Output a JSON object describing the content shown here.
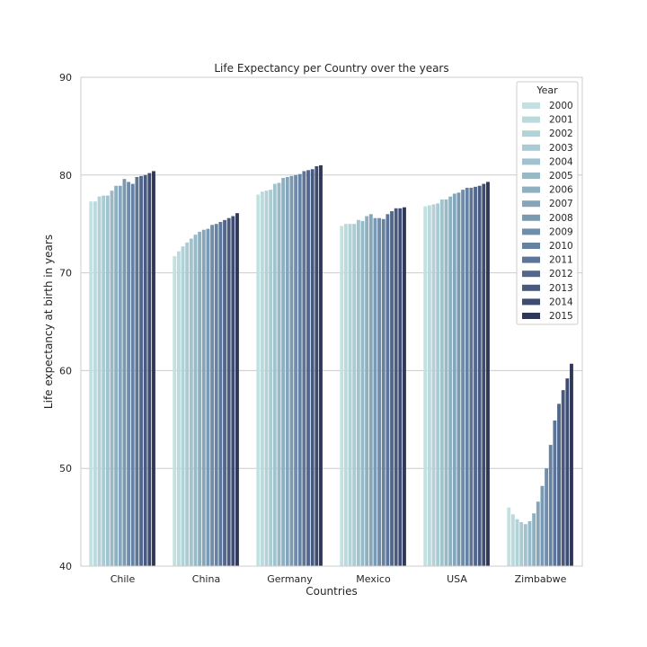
{
  "chart_data": {
    "type": "bar",
    "title": "Life Expectancy per Country over the years",
    "xlabel": "Countries",
    "ylabel": "Life expectancy at birth in years",
    "ylim": [
      40,
      90
    ],
    "yticks": [
      40,
      50,
      60,
      70,
      80,
      90
    ],
    "grid": "horizontal",
    "legend": {
      "title": "Year",
      "placement": "top-right"
    },
    "categories": [
      "Chile",
      "China",
      "Germany",
      "Mexico",
      "USA",
      "Zimbabwe"
    ],
    "series": [
      {
        "name": "2000",
        "color": "#c3e1e1",
        "values": [
          77.3,
          71.7,
          78.0,
          74.8,
          76.8,
          46.0
        ]
      },
      {
        "name": "2001",
        "color": "#bbdadc",
        "values": [
          77.3,
          72.2,
          78.3,
          75.0,
          76.9,
          45.3
        ]
      },
      {
        "name": "2002",
        "color": "#b2d2d7",
        "values": [
          77.8,
          72.7,
          78.4,
          75.0,
          77.0,
          44.8
        ]
      },
      {
        "name": "2003",
        "color": "#aacbd2",
        "values": [
          77.9,
          73.1,
          78.5,
          75.0,
          77.1,
          44.5
        ]
      },
      {
        "name": "2004",
        "color": "#a1c3cd",
        "values": [
          77.9,
          73.5,
          79.1,
          75.4,
          77.5,
          44.3
        ]
      },
      {
        "name": "2005",
        "color": "#98bac7",
        "values": [
          78.4,
          73.9,
          79.2,
          75.3,
          77.5,
          44.6
        ]
      },
      {
        "name": "2006",
        "color": "#8eb0c1",
        "values": [
          78.9,
          74.2,
          79.7,
          75.8,
          77.8,
          45.4
        ]
      },
      {
        "name": "2007",
        "color": "#84a5ba",
        "values": [
          78.9,
          74.4,
          79.8,
          76.0,
          78.1,
          46.6
        ]
      },
      {
        "name": "2008",
        "color": "#7a9ab3",
        "values": [
          79.6,
          74.5,
          79.9,
          75.6,
          78.2,
          48.2
        ]
      },
      {
        "name": "2009",
        "color": "#708eab",
        "values": [
          79.3,
          74.9,
          80.0,
          75.6,
          78.5,
          50.0
        ]
      },
      {
        "name": "2010",
        "color": "#6682a2",
        "values": [
          79.1,
          75.0,
          80.1,
          75.5,
          78.7,
          52.4
        ]
      },
      {
        "name": "2011",
        "color": "#5c7598",
        "values": [
          79.8,
          75.2,
          80.4,
          76.0,
          78.7,
          54.9
        ]
      },
      {
        "name": "2012",
        "color": "#52678c",
        "values": [
          79.9,
          75.4,
          80.5,
          76.3,
          78.8,
          56.6
        ]
      },
      {
        "name": "2013",
        "color": "#485a7f",
        "values": [
          80.0,
          75.6,
          80.6,
          76.6,
          78.9,
          58.0
        ]
      },
      {
        "name": "2014",
        "color": "#3d4c70",
        "values": [
          80.2,
          75.8,
          80.9,
          76.6,
          79.1,
          59.2
        ]
      },
      {
        "name": "2015",
        "color": "#2e3757",
        "values": [
          80.4,
          76.1,
          81.0,
          76.7,
          79.3,
          60.7
        ]
      }
    ]
  }
}
